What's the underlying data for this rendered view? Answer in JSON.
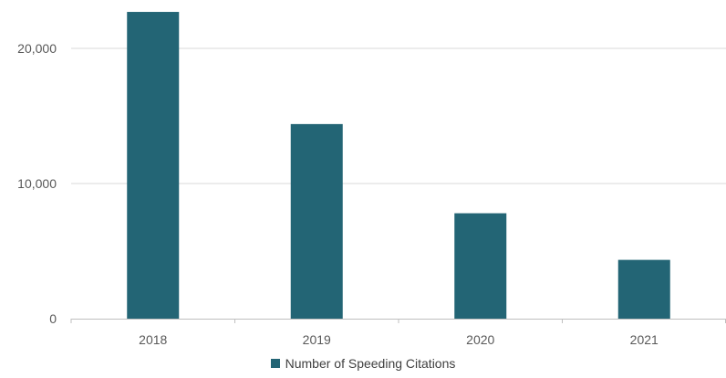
{
  "chart_data": {
    "type": "bar",
    "categories": [
      "2018",
      "2019",
      "2020",
      "2021"
    ],
    "series": [
      {
        "name": "Number of Speeding Citations",
        "values": [
          22700,
          14400,
          7800,
          4350
        ]
      }
    ],
    "xlabel": "",
    "ylabel": "",
    "ylim": [
      0,
      23000
    ],
    "yticks": [
      0,
      10000,
      20000
    ],
    "ytick_labels": [
      "0",
      "10,000",
      "20,000"
    ],
    "grid": true,
    "legend_position": "bottom",
    "colors": {
      "bar": "#236575",
      "grid": "#d9d9d9",
      "axis": "#bfbfbf",
      "tick_text": "#595959"
    }
  }
}
